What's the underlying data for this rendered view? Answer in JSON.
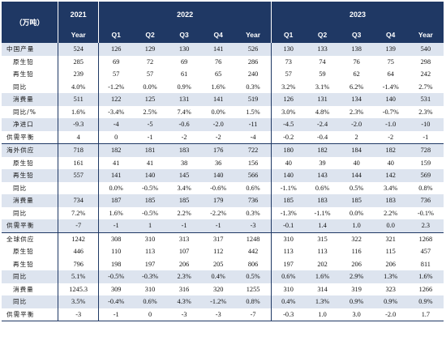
{
  "header": {
    "unit": "（万吨）",
    "year_2021": "2021",
    "year_2022": "2022",
    "year_2023": "2023",
    "cols": [
      "Year",
      "Q1",
      "Q2",
      "Q3",
      "Q4",
      "Year",
      "Q1",
      "Q2",
      "Q3",
      "Q4",
      "Year"
    ]
  },
  "rows": [
    {
      "label": "中国产量",
      "sub": false,
      "alt": true,
      "sec": false,
      "cells": [
        "524",
        "126",
        "129",
        "130",
        "141",
        "526",
        "130",
        "133",
        "138",
        "139",
        "540"
      ]
    },
    {
      "label": "原生铅",
      "sub": true,
      "alt": false,
      "sec": false,
      "cells": [
        "285",
        "69",
        "72",
        "69",
        "76",
        "286",
        "73",
        "74",
        "76",
        "75",
        "298"
      ]
    },
    {
      "label": "再生铅",
      "sub": true,
      "alt": false,
      "sec": false,
      "cells": [
        "239",
        "57",
        "57",
        "61",
        "65",
        "240",
        "57",
        "59",
        "62",
        "64",
        "242"
      ]
    },
    {
      "label": "同比",
      "sub": true,
      "alt": false,
      "sec": false,
      "cells": [
        "4.0%",
        "-1.2%",
        "0.0%",
        "0.9%",
        "1.6%",
        "0.3%",
        "3.2%",
        "3.1%",
        "6.2%",
        "-1.4%",
        "2.7%"
      ]
    },
    {
      "label": "消费量",
      "sub": true,
      "alt": true,
      "sec": false,
      "cells": [
        "511",
        "122",
        "125",
        "131",
        "141",
        "519",
        "126",
        "131",
        "134",
        "140",
        "531"
      ]
    },
    {
      "label": "同比/%",
      "sub": true,
      "alt": false,
      "sec": false,
      "cells": [
        "1.6%",
        "-3.4%",
        "2.5%",
        "7.4%",
        "0.0%",
        "1.5%",
        "3.0%",
        "4.8%",
        "2.3%",
        "-0.7%",
        "2.3%"
      ]
    },
    {
      "label": "净进口",
      "sub": true,
      "alt": true,
      "sec": false,
      "cells": [
        "-9.3",
        "-4",
        "-5",
        "-0.6",
        "-2.0",
        "-11",
        "-4.5",
        "-2.4",
        "-2.0",
        "-1.0",
        "-10"
      ]
    },
    {
      "label": "供需平衡",
      "sub": false,
      "alt": false,
      "sec": false,
      "cells": [
        "4",
        "0",
        "-1",
        "-2",
        "-2",
        "-4",
        "-0.2",
        "-0.4",
        "2",
        "-2",
        "-1"
      ]
    },
    {
      "label": "海外供应",
      "sub": false,
      "alt": true,
      "sec": true,
      "cells": [
        "718",
        "182",
        "181",
        "183",
        "176",
        "722",
        "180",
        "182",
        "184",
        "182",
        "728"
      ]
    },
    {
      "label": "原生铅",
      "sub": true,
      "alt": false,
      "sec": false,
      "cells": [
        "161",
        "41",
        "41",
        "38",
        "36",
        "156",
        "40",
        "39",
        "40",
        "40",
        "159"
      ]
    },
    {
      "label": "再生铅",
      "sub": true,
      "alt": true,
      "sec": false,
      "cells": [
        "557",
        "141",
        "140",
        "145",
        "140",
        "566",
        "140",
        "143",
        "144",
        "142",
        "569"
      ]
    },
    {
      "label": "同比",
      "sub": true,
      "alt": false,
      "sec": false,
      "cells": [
        "",
        "0.0%",
        "-0.5%",
        "3.4%",
        "-0.6%",
        "0.6%",
        "-1.1%",
        "0.6%",
        "0.5%",
        "3.4%",
        "0.8%"
      ]
    },
    {
      "label": "消费量",
      "sub": true,
      "alt": true,
      "sec": false,
      "cells": [
        "734",
        "187",
        "185",
        "185",
        "179",
        "736",
        "185",
        "183",
        "185",
        "183",
        "736"
      ]
    },
    {
      "label": "同比",
      "sub": true,
      "alt": false,
      "sec": false,
      "cells": [
        "7.2%",
        "1.6%",
        "-0.5%",
        "2.2%",
        "-2.2%",
        "0.3%",
        "-1.3%",
        "-1.1%",
        "0.0%",
        "2.2%",
        "-0.1%"
      ]
    },
    {
      "label": "供需平衡",
      "sub": false,
      "alt": true,
      "sec": false,
      "cells": [
        "-7",
        "-1",
        "1",
        "-1",
        "-1",
        "-3",
        "-0.1",
        "1.4",
        "1.0",
        "0.0",
        "2.3"
      ]
    },
    {
      "label": "全球供应",
      "sub": false,
      "alt": false,
      "sec": true,
      "cells": [
        "1242",
        "308",
        "310",
        "313",
        "317",
        "1248",
        "310",
        "315",
        "322",
        "321",
        "1268"
      ]
    },
    {
      "label": "原生铅",
      "sub": true,
      "alt": false,
      "sec": false,
      "cells": [
        "446",
        "110",
        "113",
        "107",
        "112",
        "442",
        "113",
        "113",
        "116",
        "115",
        "457"
      ]
    },
    {
      "label": "再生铅",
      "sub": true,
      "alt": false,
      "sec": false,
      "cells": [
        "796",
        "198",
        "197",
        "206",
        "205",
        "806",
        "197",
        "202",
        "206",
        "206",
        "811"
      ]
    },
    {
      "label": "同比",
      "sub": true,
      "alt": true,
      "sec": false,
      "cells": [
        "5.1%",
        "-0.5%",
        "-0.3%",
        "2.3%",
        "0.4%",
        "0.5%",
        "0.6%",
        "1.6%",
        "2.9%",
        "1.3%",
        "1.6%"
      ]
    },
    {
      "label": "消费量",
      "sub": true,
      "alt": false,
      "sec": false,
      "cells": [
        "1245.3",
        "309",
        "310",
        "316",
        "320",
        "1255",
        "310",
        "314",
        "319",
        "323",
        "1266"
      ]
    },
    {
      "label": "同比",
      "sub": true,
      "alt": true,
      "sec": false,
      "cells": [
        "3.5%",
        "-0.4%",
        "0.6%",
        "4.3%",
        "-1.2%",
        "0.8%",
        "0.4%",
        "1.3%",
        "0.9%",
        "0.9%",
        "0.9%"
      ]
    },
    {
      "label": "供需平衡",
      "sub": false,
      "alt": false,
      "sec": false,
      "cells": [
        "-3",
        "-1",
        "0",
        "-3",
        "-3",
        "-7",
        "-0.3",
        "1.0",
        "3.0",
        "-2.0",
        "1.7"
      ]
    }
  ],
  "colors": {
    "header_bg": "#1f3864",
    "alt_row": "#dde4ef"
  }
}
